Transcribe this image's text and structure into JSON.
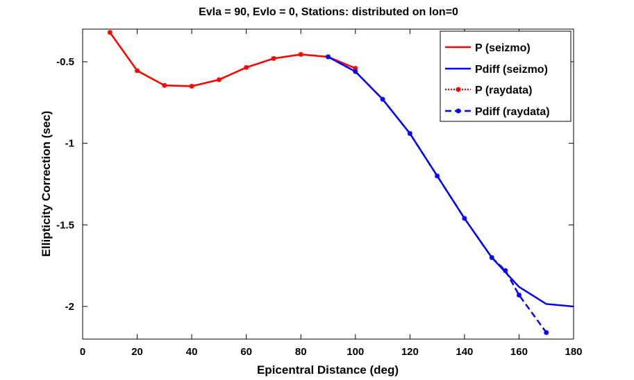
{
  "chart_data": {
    "type": "line",
    "title": "Evla = 90, Evlo = 0, Stations: distributed on lon=0",
    "xlabel": "Epicentral Distance (deg)",
    "ylabel": "Ellipticity Correction (sec)",
    "xlim": [
      0,
      180
    ],
    "ylim": [
      -2.2,
      -0.3
    ],
    "xticks": [
      0,
      20,
      40,
      60,
      80,
      100,
      120,
      140,
      160,
      180
    ],
    "xtick_labels": [
      "0",
      "20",
      "40",
      "60",
      "80",
      "100",
      "120",
      "140",
      "160",
      "180"
    ],
    "yticks": [
      -0.5,
      -1,
      -1.5,
      -2
    ],
    "ytick_labels": [
      "-0.5",
      "-1",
      "-1.5",
      "-2"
    ],
    "grid": false,
    "legend_position": "top-right",
    "series": [
      {
        "name": "P (seizmo)",
        "color": "#ff0000",
        "line_style": "solid",
        "marker": "none",
        "x": [
          10,
          20,
          30,
          40,
          50,
          60,
          70,
          80,
          90,
          100
        ],
        "y": [
          -0.32,
          -0.555,
          -0.645,
          -0.65,
          -0.61,
          -0.535,
          -0.48,
          -0.455,
          -0.47,
          -0.54
        ]
      },
      {
        "name": "Pdiff (seizmo)",
        "color": "#0000ff",
        "line_style": "solid",
        "marker": "none",
        "x": [
          90,
          100,
          110,
          120,
          130,
          140,
          150,
          160,
          170,
          180
        ],
        "y": [
          -0.47,
          -0.56,
          -0.73,
          -0.94,
          -1.2,
          -1.46,
          -1.7,
          -1.88,
          -1.985,
          -2.0
        ]
      },
      {
        "name": "P (raydata)",
        "color": "#ff0000",
        "line_style": "dotted",
        "marker": "star",
        "x": [
          10,
          20,
          30,
          40,
          50,
          60,
          70,
          80,
          90,
          100
        ],
        "y": [
          -0.32,
          -0.555,
          -0.645,
          -0.65,
          -0.61,
          -0.535,
          -0.48,
          -0.455,
          -0.47,
          -0.54
        ]
      },
      {
        "name": "Pdiff (raydata)",
        "color": "#0000ff",
        "line_style": "dashed",
        "marker": "star",
        "x": [
          90,
          100,
          110,
          120,
          130,
          140,
          150,
          155,
          160,
          170
        ],
        "y": [
          -0.47,
          -0.56,
          -0.73,
          -0.94,
          -1.2,
          -1.46,
          -1.7,
          -1.78,
          -1.93,
          -2.16
        ]
      }
    ]
  }
}
